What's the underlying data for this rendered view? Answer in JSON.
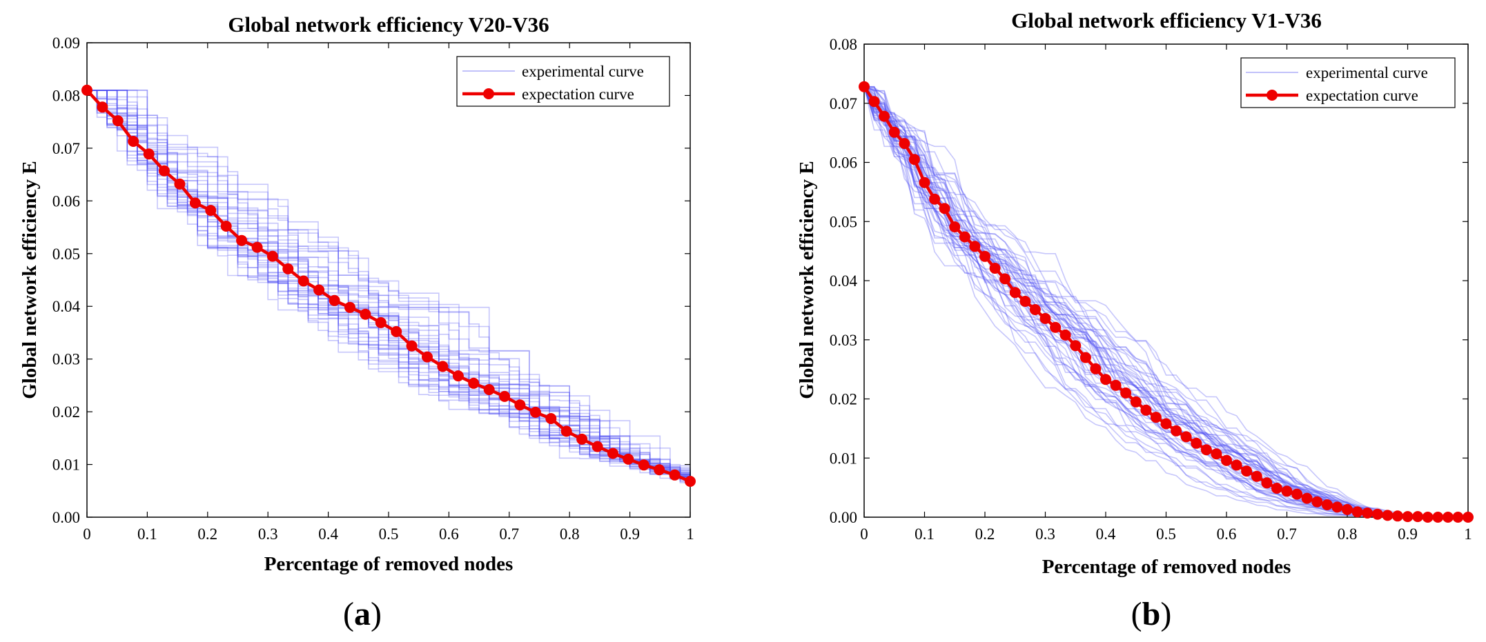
{
  "figure": {
    "left_panel_caption_letter": "a",
    "right_panel_caption_letter": "b",
    "paren_open": "(",
    "paren_close": ")"
  },
  "chart_data": [
    {
      "type": "line",
      "panel": "a",
      "title": "Global network efficiency  V20-V36",
      "xlabel": "Percentage of removed nodes",
      "ylabel": "Global network efficiency E",
      "xlim": [
        0,
        1
      ],
      "ylim": [
        0,
        0.09
      ],
      "xticks": [
        0,
        0.1,
        0.2,
        0.3,
        0.4,
        0.5,
        0.6,
        0.7,
        0.8,
        0.9,
        1
      ],
      "xtick_labels": [
        "0",
        "0.1",
        "0.2",
        "0.3",
        "0.4",
        "0.5",
        "0.6",
        "0.7",
        "0.8",
        "0.9",
        "1"
      ],
      "yticks": [
        0,
        0.01,
        0.02,
        0.03,
        0.04,
        0.05,
        0.06,
        0.07,
        0.08,
        0.09
      ],
      "ytick_labels": [
        "0.00",
        "0.01",
        "0.02",
        "0.03",
        "0.04",
        "0.05",
        "0.06",
        "0.07",
        "0.08",
        "0.09"
      ],
      "legend": [
        "experimental curve",
        "expectation curve"
      ],
      "legend_position": "top-right",
      "colors": {
        "experimental": "#4d4df2",
        "expectation": "#ee0000"
      },
      "experimental_style": "step",
      "experimental_count": 40,
      "experimental_seed": 11,
      "expectation_x": [
        0,
        0.0256,
        0.0513,
        0.0769,
        0.1026,
        0.1282,
        0.1538,
        0.1795,
        0.2051,
        0.2308,
        0.2564,
        0.2821,
        0.3077,
        0.3333,
        0.359,
        0.3846,
        0.4103,
        0.4359,
        0.4615,
        0.4872,
        0.5128,
        0.5385,
        0.5641,
        0.5897,
        0.6154,
        0.641,
        0.6667,
        0.6923,
        0.7179,
        0.7436,
        0.7692,
        0.7949,
        0.8205,
        0.8462,
        0.8718,
        0.8974,
        0.9231,
        0.9487,
        0.9744,
        1.0
      ],
      "expectation_y": [
        0.081,
        0.0778,
        0.0752,
        0.0713,
        0.0689,
        0.0657,
        0.0632,
        0.0596,
        0.0582,
        0.0552,
        0.0525,
        0.0512,
        0.0495,
        0.0471,
        0.0448,
        0.0431,
        0.0411,
        0.0398,
        0.0385,
        0.0369,
        0.0352,
        0.0325,
        0.0304,
        0.0286,
        0.0268,
        0.0254,
        0.0242,
        0.0229,
        0.0213,
        0.0199,
        0.0187,
        0.0163,
        0.0148,
        0.0134,
        0.0121,
        0.011,
        0.0099,
        0.009,
        0.008,
        0.0068
      ]
    },
    {
      "type": "line",
      "panel": "b",
      "title": "Global network efficiency  V1-V36",
      "xlabel": "Percentage of removed nodes",
      "ylabel": "Global network efficiency E",
      "xlim": [
        0,
        1
      ],
      "ylim": [
        0,
        0.08
      ],
      "xticks": [
        0,
        0.1,
        0.2,
        0.3,
        0.4,
        0.5,
        0.6,
        0.7,
        0.8,
        0.9,
        1
      ],
      "xtick_labels": [
        "0",
        "0.1",
        "0.2",
        "0.3",
        "0.4",
        "0.5",
        "0.6",
        "0.7",
        "0.8",
        "0.9",
        "1"
      ],
      "yticks": [
        0,
        0.01,
        0.02,
        0.03,
        0.04,
        0.05,
        0.06,
        0.07,
        0.08
      ],
      "ytick_labels": [
        "0.00",
        "0.01",
        "0.02",
        "0.03",
        "0.04",
        "0.05",
        "0.06",
        "0.07",
        "0.08"
      ],
      "legend": [
        "experimental curve",
        "expectation curve"
      ],
      "legend_position": "top-right",
      "colors": {
        "experimental": "#4d4df2",
        "expectation": "#ee0000"
      },
      "experimental_style": "jagged",
      "experimental_count": 48,
      "experimental_seed": 29,
      "expectation_x": [
        0,
        0.0167,
        0.0333,
        0.05,
        0.0667,
        0.0833,
        0.1,
        0.1167,
        0.1333,
        0.15,
        0.1667,
        0.1833,
        0.2,
        0.2167,
        0.2333,
        0.25,
        0.2667,
        0.2833,
        0.3,
        0.3167,
        0.3333,
        0.35,
        0.3667,
        0.3833,
        0.4,
        0.4167,
        0.4333,
        0.45,
        0.4667,
        0.4833,
        0.5,
        0.5167,
        0.5333,
        0.55,
        0.5667,
        0.5833,
        0.6,
        0.6167,
        0.6333,
        0.65,
        0.6667,
        0.6833,
        0.7,
        0.7167,
        0.7333,
        0.75,
        0.7667,
        0.7833,
        0.8,
        0.8167,
        0.8333,
        0.85,
        0.8667,
        0.8833,
        0.9,
        0.9167,
        0.9333,
        0.95,
        0.9667,
        0.9833,
        1.0
      ],
      "expectation_y": [
        0.0728,
        0.0703,
        0.0678,
        0.0651,
        0.0632,
        0.0605,
        0.0566,
        0.0538,
        0.0522,
        0.0491,
        0.0474,
        0.0458,
        0.0441,
        0.0421,
        0.0403,
        0.038,
        0.0365,
        0.0351,
        0.0336,
        0.0321,
        0.0308,
        0.029,
        0.027,
        0.0251,
        0.0233,
        0.0223,
        0.021,
        0.0195,
        0.0181,
        0.0169,
        0.0158,
        0.0146,
        0.0136,
        0.0125,
        0.0114,
        0.0107,
        0.0096,
        0.0088,
        0.0078,
        0.0069,
        0.0058,
        0.0049,
        0.0044,
        0.0039,
        0.0032,
        0.0026,
        0.0021,
        0.0017,
        0.0013,
        0.0009,
        0.0007,
        0.0005,
        0.0003,
        0.0002,
        0.0001,
        0.0001,
        0.0,
        0.0,
        0.0,
        0.0,
        0.0
      ]
    }
  ]
}
